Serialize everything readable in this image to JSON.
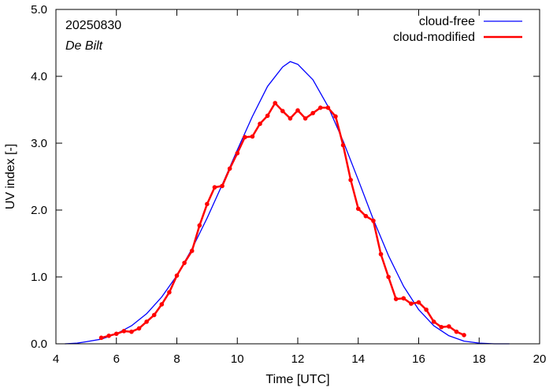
{
  "chart_data": {
    "type": "line",
    "annotations": {
      "date": "20250830",
      "station": "De Bilt"
    },
    "xlabel": "Time  [UTC]",
    "ylabel": "UV index  [-]",
    "xlim": [
      4,
      20
    ],
    "ylim": [
      0,
      5
    ],
    "x_ticks": [
      4,
      6,
      8,
      10,
      12,
      14,
      16,
      18,
      20
    ],
    "x_tick_labels": [
      "4",
      "6",
      "8",
      "10",
      "12",
      "14",
      "16",
      "18",
      "20"
    ],
    "y_ticks": [
      0,
      1,
      2,
      3,
      4,
      5
    ],
    "y_tick_labels": [
      "0.0",
      "1.0",
      "2.0",
      "3.0",
      "4.0",
      "5.0"
    ],
    "legend_position": "top-right",
    "grid": false,
    "series": [
      {
        "name": "cloud-free",
        "color": "#0000ff",
        "markers": false,
        "x": [
          4.3,
          4.7,
          5.0,
          5.5,
          6.0,
          6.5,
          7.0,
          7.5,
          8.0,
          8.5,
          9.0,
          9.5,
          10.0,
          10.5,
          11.0,
          11.5,
          11.75,
          12.0,
          12.5,
          13.0,
          13.5,
          14.0,
          14.5,
          15.0,
          15.5,
          16.0,
          16.5,
          17.0,
          17.5,
          18.0,
          18.5,
          19.0
        ],
        "y": [
          0.0,
          0.01,
          0.03,
          0.07,
          0.15,
          0.27,
          0.45,
          0.7,
          1.02,
          1.42,
          1.88,
          2.38,
          2.9,
          3.4,
          3.85,
          4.14,
          4.22,
          4.18,
          3.95,
          3.55,
          3.03,
          2.45,
          1.86,
          1.32,
          0.86,
          0.51,
          0.27,
          0.12,
          0.04,
          0.01,
          0.0,
          0.0
        ]
      },
      {
        "name": "cloud-modified",
        "color": "#ff0000",
        "markers": true,
        "x": [
          5.5,
          5.75,
          6.0,
          6.25,
          6.5,
          6.75,
          7.0,
          7.25,
          7.5,
          7.75,
          8.0,
          8.25,
          8.5,
          8.75,
          9.0,
          9.25,
          9.5,
          9.75,
          10.0,
          10.25,
          10.5,
          10.75,
          11.0,
          11.25,
          11.5,
          11.75,
          12.0,
          12.25,
          12.5,
          12.75,
          13.0,
          13.25,
          13.5,
          13.75,
          14.0,
          14.25,
          14.5,
          14.75,
          15.0,
          15.25,
          15.5,
          15.75,
          16.0,
          16.25,
          16.5,
          16.75,
          17.0,
          17.25,
          17.5
        ],
        "y": [
          0.09,
          0.12,
          0.15,
          0.19,
          0.18,
          0.23,
          0.33,
          0.43,
          0.59,
          0.77,
          1.02,
          1.21,
          1.39,
          1.77,
          2.09,
          2.34,
          2.36,
          2.62,
          2.85,
          3.09,
          3.1,
          3.29,
          3.41,
          3.6,
          3.48,
          3.37,
          3.49,
          3.37,
          3.45,
          3.53,
          3.53,
          3.4,
          2.97,
          2.45,
          2.02,
          1.91,
          1.84,
          1.34,
          1.0,
          0.67,
          0.68,
          0.6,
          0.62,
          0.51,
          0.33,
          0.25,
          0.26,
          0.18,
          0.13
        ]
      }
    ]
  }
}
